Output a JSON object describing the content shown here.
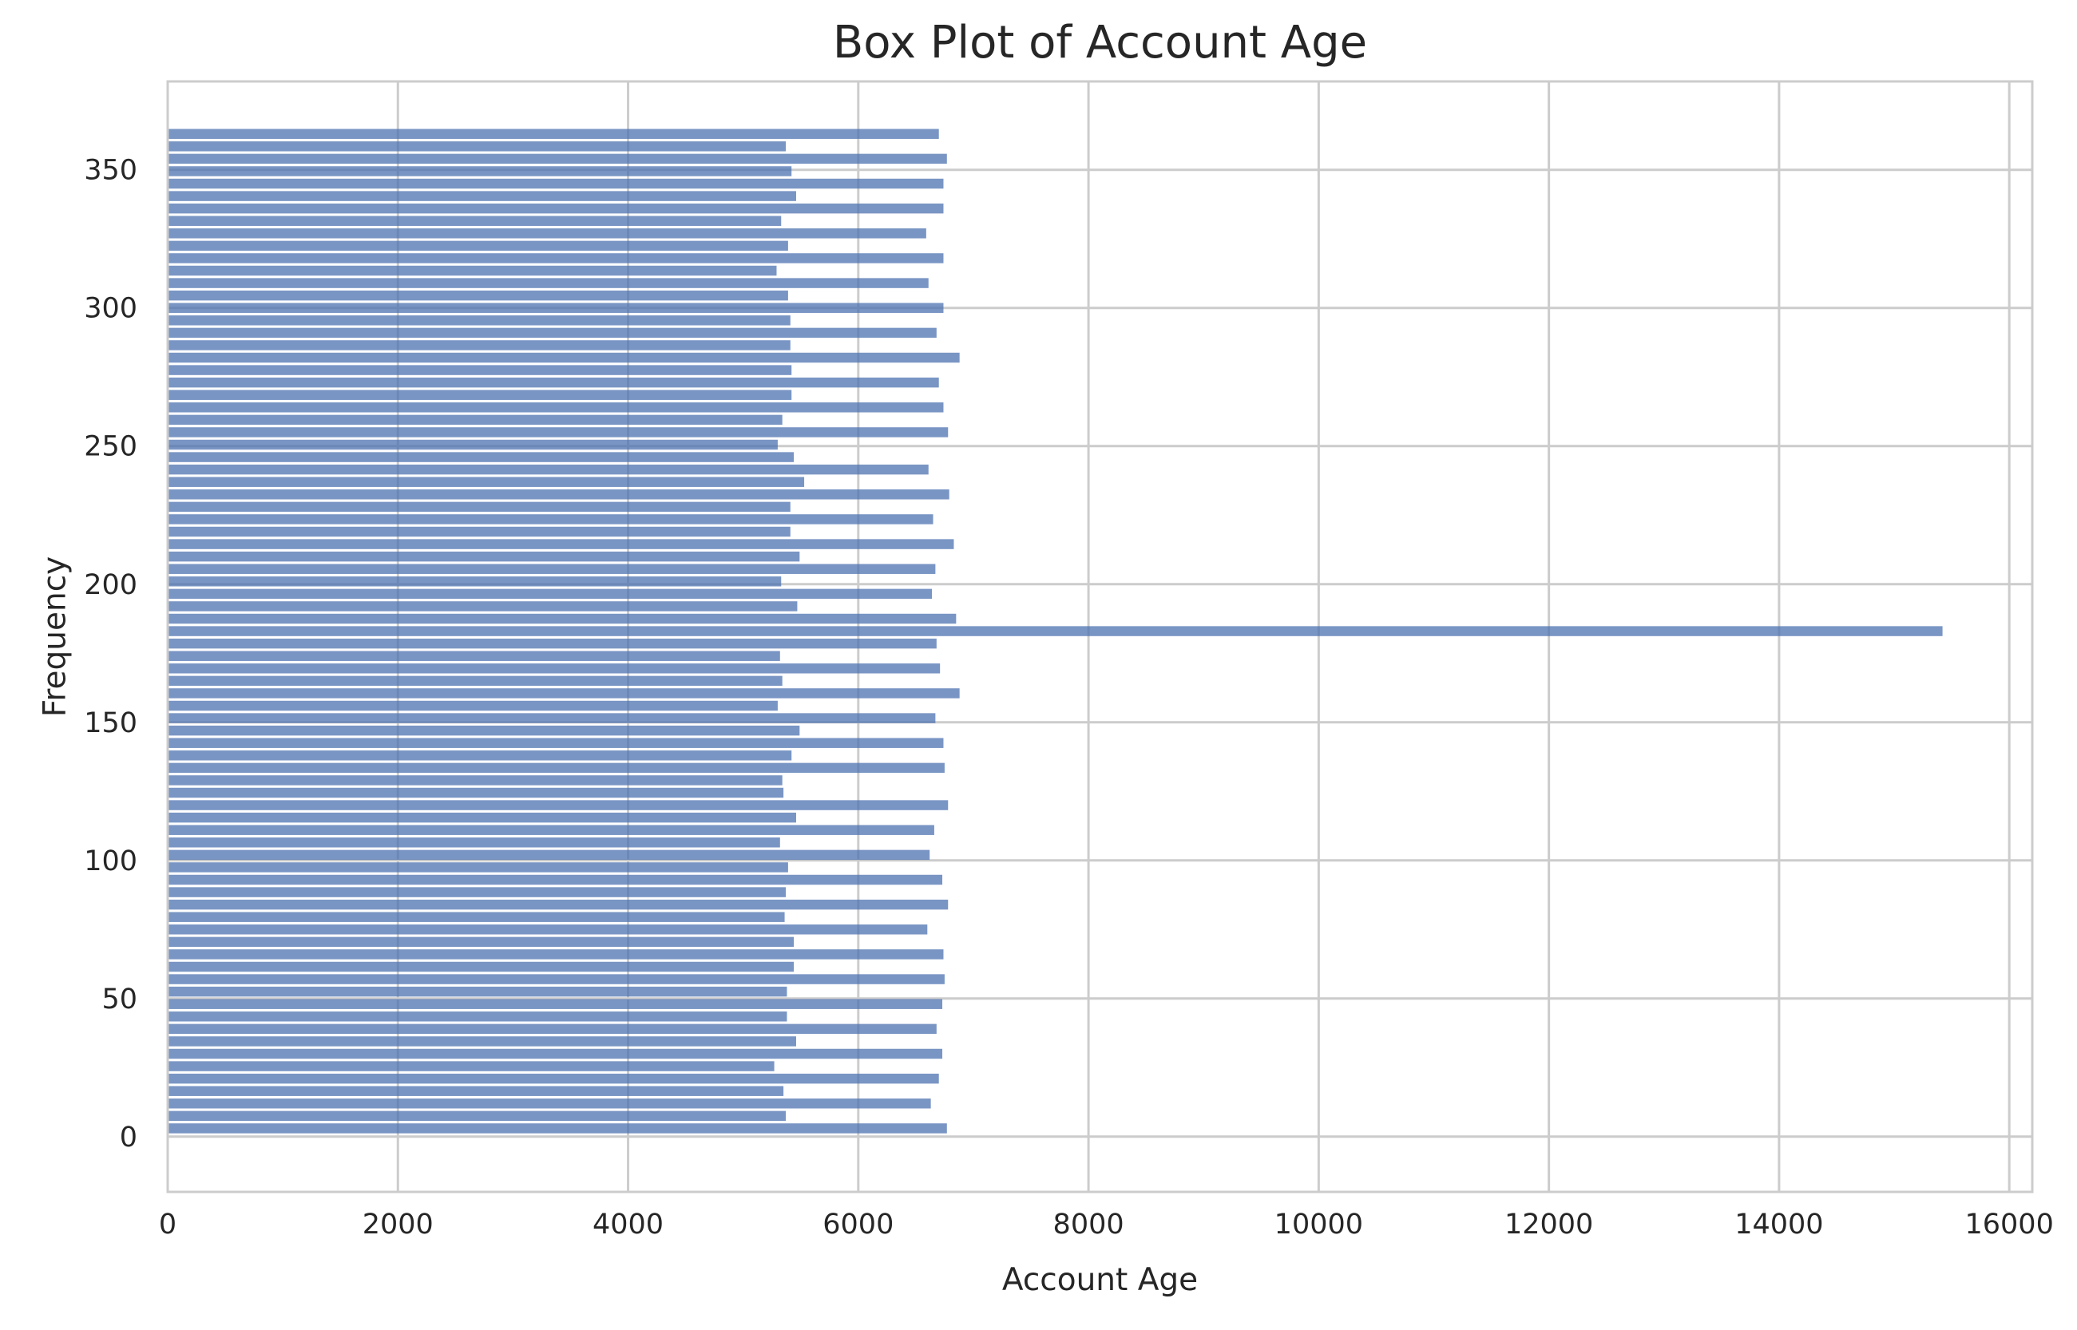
{
  "chart_data": {
    "type": "bar",
    "orientation": "horizontal",
    "title": "Box Plot of Account Age",
    "xlabel": "Account Age",
    "ylabel": "Frequency",
    "xlim": [
      0,
      16200
    ],
    "ylim": [
      -20,
      382
    ],
    "xticks": [
      0,
      2000,
      4000,
      6000,
      8000,
      10000,
      12000,
      14000,
      16000
    ],
    "yticks": [
      0,
      50,
      100,
      150,
      200,
      250,
      300,
      350
    ],
    "grid": true,
    "bar_color": "#4c72b0",
    "bar_opacity": 0.75,
    "bar_height": 3.6,
    "y": [
      3,
      7.5,
      12,
      16.5,
      21,
      25.5,
      30,
      34.5,
      39,
      43.5,
      48,
      52.5,
      57,
      61.5,
      66,
      70.5,
      75,
      79.5,
      84,
      88.5,
      93,
      97.5,
      102,
      106.5,
      111,
      115.5,
      120,
      124.5,
      129,
      133.5,
      138,
      142.5,
      147,
      151.5,
      156,
      160.5,
      165,
      169.5,
      174,
      178.5,
      183,
      187.5,
      192,
      196.5,
      201,
      205.5,
      210,
      214.5,
      219,
      223.5,
      228,
      232.5,
      237,
      241.5,
      246,
      250.5,
      255,
      259.5,
      264,
      268.5,
      273,
      277.5,
      282,
      286.5,
      291,
      295.5,
      300,
      304.5,
      309,
      313.5,
      318,
      322.5,
      327,
      331.5,
      336,
      340.5,
      345,
      349.5,
      354,
      358.5,
      363
    ],
    "values": [
      6770,
      5370,
      6630,
      5350,
      6700,
      5270,
      6730,
      5460,
      6680,
      5380,
      6730,
      5380,
      6750,
      5440,
      6740,
      5440,
      6600,
      5360,
      6780,
      5370,
      6730,
      5390,
      6620,
      5320,
      6660,
      5460,
      6780,
      5350,
      5340,
      6750,
      5420,
      6740,
      5490,
      6670,
      5300,
      6880,
      5340,
      6710,
      5320,
      6680,
      15420,
      6850,
      5470,
      6640,
      5330,
      6670,
      5490,
      6830,
      5410,
      6650,
      5410,
      6790,
      5530,
      6610,
      5440,
      5300,
      6780,
      5340,
      6740,
      5420,
      6700,
      5420,
      6880,
      5410,
      6680,
      5410,
      6740,
      5390,
      6610,
      5290,
      6740,
      5390,
      6590,
      5330,
      6740,
      5460,
      6740,
      5420,
      6770,
      5370,
      6700
    ]
  }
}
